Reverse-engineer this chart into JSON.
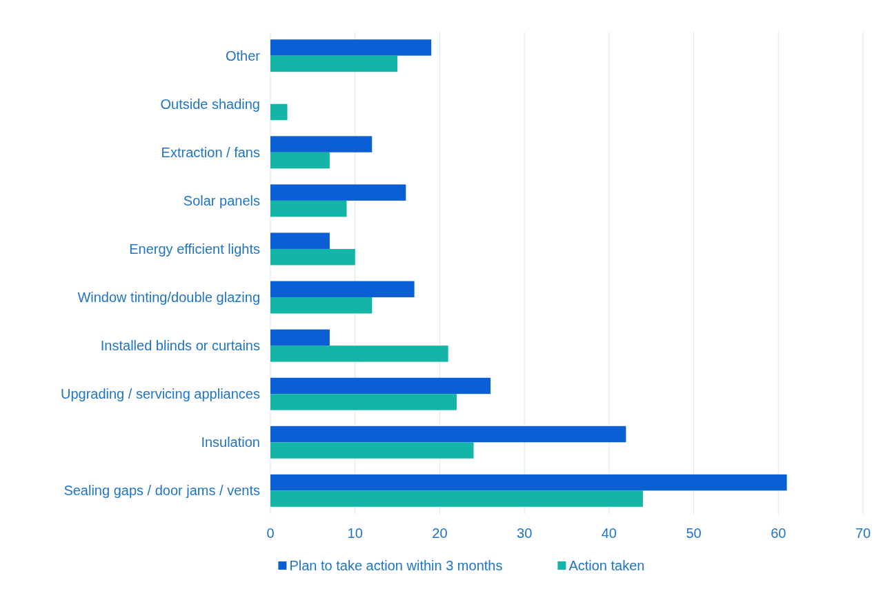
{
  "chart_data": {
    "type": "bar",
    "orientation": "horizontal",
    "categories": [
      "Other",
      "Outside shading",
      "Extraction / fans",
      "Solar panels",
      "Energy efficient lights",
      "Window tinting/double glazing",
      "Installed blinds or curtains",
      "Upgrading / servicing appliances",
      "Insulation",
      "Sealing gaps / door jams / vents"
    ],
    "series": [
      {
        "name": "Plan to take action within 3 months",
        "color": "#0b5fd4",
        "values": [
          19,
          0,
          12,
          16,
          7,
          17,
          7,
          26,
          42,
          61
        ]
      },
      {
        "name": "Action taken",
        "color": "#13b5a6",
        "values": [
          15,
          2,
          7,
          9,
          10,
          12,
          21,
          22,
          24,
          44
        ]
      }
    ],
    "xlim": [
      0,
      70
    ],
    "xticks": [
      0,
      10,
      20,
      30,
      40,
      50,
      60,
      70
    ],
    "grid": "x",
    "legend": "bottom"
  }
}
